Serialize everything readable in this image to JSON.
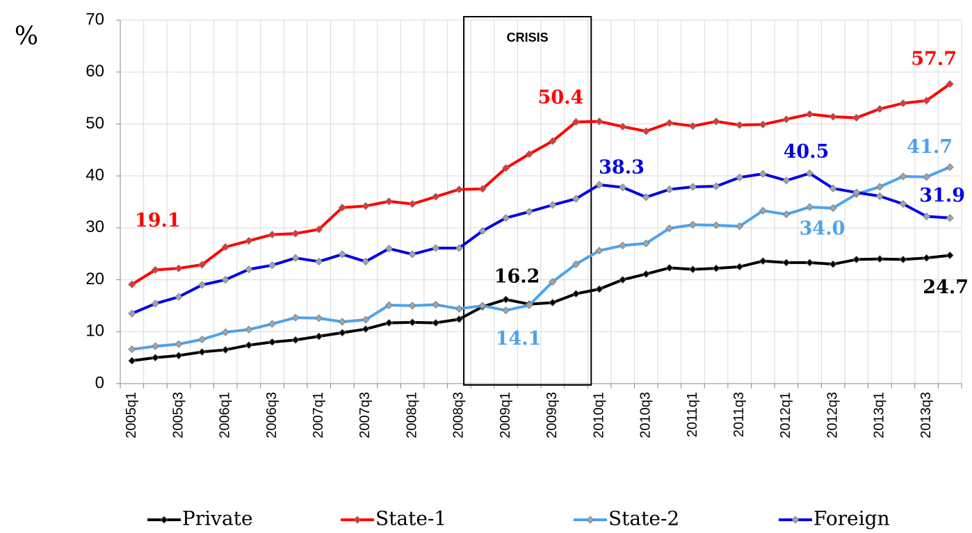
{
  "chart_data": {
    "type": "line",
    "y_label": "%",
    "annotation": "CRISIS",
    "categories": [
      "2005q1",
      null,
      "2005q3",
      null,
      "2006q1",
      null,
      "2006q3",
      null,
      "2007q1",
      null,
      "2007q3",
      null,
      "2008q1",
      null,
      "2008q3",
      null,
      "2009q1",
      null,
      "2009q3",
      null,
      "2010q1",
      null,
      "2010q3",
      null,
      "2011q1",
      null,
      "2011q3",
      null,
      "2012q1",
      null,
      "2012q3",
      null,
      "2013q1",
      null,
      "2013q3",
      null
    ],
    "ylim": [
      0,
      70
    ],
    "yticks": [
      0,
      10,
      20,
      30,
      40,
      50,
      60,
      70
    ],
    "grid": true,
    "legend": "bottom",
    "series": [
      {
        "name": "Private",
        "color": "#000000",
        "marker_color": "#000000",
        "values": [
          4.4,
          5.0,
          5.4,
          6.1,
          6.5,
          7.4,
          8.0,
          8.4,
          9.1,
          9.8,
          10.5,
          11.7,
          11.8,
          11.7,
          12.4,
          14.8,
          16.2,
          15.3,
          15.6,
          17.3,
          18.2,
          20.0,
          21.1,
          22.3,
          22.0,
          22.2,
          22.5,
          23.6,
          23.3,
          23.3,
          23.0,
          23.9,
          24.0,
          23.9,
          24.2,
          24.7
        ],
        "value_labels": [
          null,
          null,
          null,
          null,
          null,
          null,
          null,
          null,
          null,
          null,
          null,
          null,
          null,
          null,
          null,
          null,
          "16.2",
          null,
          null,
          null,
          null,
          null,
          null,
          null,
          null,
          null,
          null,
          null,
          null,
          null,
          null,
          null,
          null,
          null,
          null,
          "24.7"
        ]
      },
      {
        "name": "State-1",
        "color": "#ff0000",
        "marker_color": "#e8332e",
        "values": [
          19.1,
          21.9,
          22.2,
          22.9,
          26.3,
          27.5,
          28.7,
          28.9,
          29.7,
          33.9,
          34.2,
          35.1,
          34.6,
          36.0,
          37.4,
          37.5,
          41.5,
          44.2,
          46.7,
          50.4,
          50.5,
          49.5,
          48.6,
          50.2,
          49.6,
          50.5,
          49.8,
          49.9,
          50.9,
          51.9,
          51.4,
          51.2,
          52.9,
          54.0,
          54.5,
          57.7
        ],
        "value_labels": [
          "19.1",
          null,
          null,
          null,
          null,
          null,
          null,
          null,
          null,
          null,
          null,
          null,
          null,
          null,
          null,
          null,
          null,
          null,
          null,
          "50.4",
          null,
          null,
          null,
          null,
          null,
          null,
          null,
          null,
          null,
          null,
          null,
          null,
          null,
          null,
          null,
          "57.7"
        ]
      },
      {
        "name": "State-2",
        "color": "#4da3ec",
        "marker_color": "#9aa6b2",
        "values": [
          6.6,
          7.2,
          7.6,
          8.5,
          9.9,
          10.4,
          11.5,
          12.7,
          12.6,
          11.9,
          12.3,
          15.1,
          15.0,
          15.2,
          14.4,
          15.0,
          14.1,
          15.1,
          19.6,
          23.0,
          25.6,
          26.6,
          27.0,
          29.9,
          30.6,
          30.5,
          30.3,
          33.3,
          32.6,
          34.0,
          33.8,
          36.5,
          37.9,
          39.9,
          39.8,
          41.7
        ],
        "value_labels": [
          null,
          null,
          null,
          null,
          null,
          null,
          null,
          null,
          null,
          null,
          null,
          null,
          null,
          null,
          null,
          null,
          "14.1",
          null,
          null,
          null,
          null,
          null,
          null,
          null,
          null,
          null,
          null,
          null,
          null,
          "34.0",
          null,
          null,
          null,
          null,
          null,
          "41.7"
        ]
      },
      {
        "name": "Foreign",
        "color": "#0000e6",
        "marker_color": "#9aa6b2",
        "values": [
          13.5,
          15.4,
          16.7,
          19.0,
          20.0,
          22.0,
          22.8,
          24.2,
          23.5,
          24.9,
          23.5,
          26.0,
          24.9,
          26.1,
          26.1,
          29.4,
          31.9,
          33.1,
          34.4,
          35.6,
          38.3,
          37.8,
          35.9,
          37.4,
          37.9,
          38.0,
          39.7,
          40.4,
          39.1,
          40.5,
          37.6,
          36.8,
          36.1,
          34.6,
          32.2,
          31.9
        ],
        "value_labels": [
          null,
          null,
          null,
          null,
          null,
          null,
          null,
          null,
          null,
          null,
          null,
          null,
          null,
          null,
          null,
          null,
          null,
          null,
          null,
          null,
          "38.3",
          null,
          null,
          null,
          null,
          null,
          null,
          null,
          null,
          "40.5",
          null,
          null,
          null,
          null,
          null,
          "31.9"
        ]
      }
    ]
  }
}
